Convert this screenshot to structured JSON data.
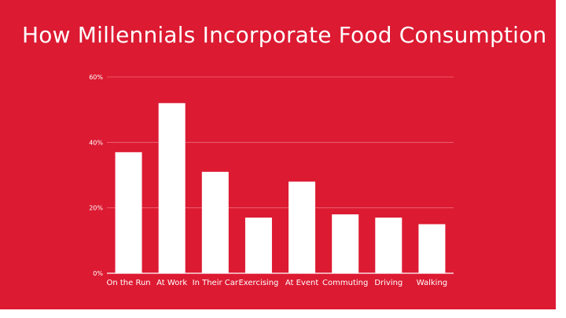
{
  "slide": {
    "title": "How Millennials Incorporate Food Consumption",
    "background_color": "#dc1a32"
  },
  "chart_data": {
    "type": "bar",
    "title": "",
    "xlabel": "",
    "ylabel": "",
    "categories": [
      "On the Run",
      "At Work",
      "In Their Car",
      "Exercising",
      "At Event",
      "Commuting",
      "Driving",
      "Walking"
    ],
    "values": [
      37,
      52,
      31,
      17,
      28,
      18,
      17,
      15
    ],
    "ylim": [
      0,
      60
    ],
    "yticks": [
      "0%",
      "20%",
      "40%",
      "60%"
    ],
    "grid": true,
    "legend": "none",
    "bar_color": "#ffffff",
    "gridline_color": "#f06a7a"
  }
}
